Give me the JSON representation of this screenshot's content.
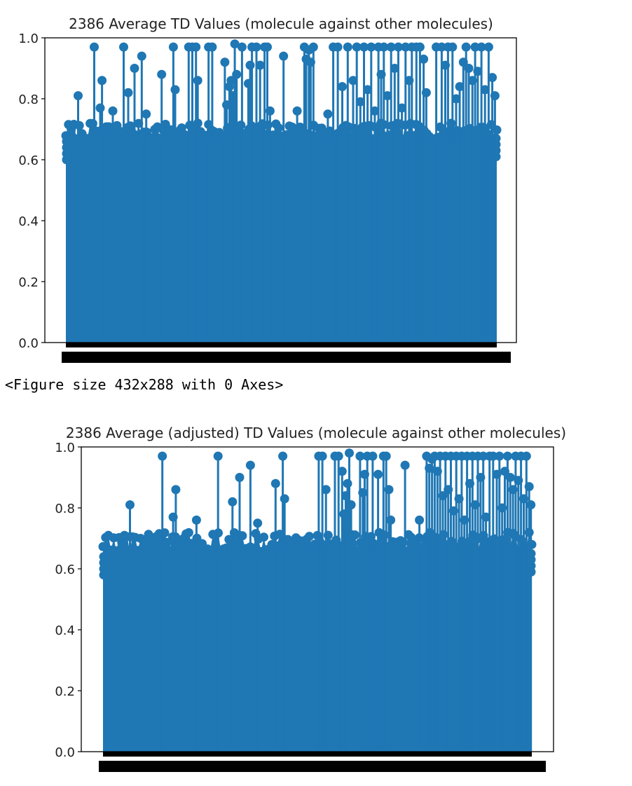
{
  "output_text": "<Figure size 432x288 with 0 Axes>",
  "colors": {
    "series": "#1f77b4",
    "axis": "#000000",
    "ticklabels": "#000000"
  },
  "chart_data": [
    {
      "type": "stem",
      "title": "2386 Average TD Values (molecule against other molecules)",
      "xlabel": "",
      "ylabel": "",
      "ylim": [
        0,
        1.0
      ],
      "yticks": [
        0.0,
        0.2,
        0.4,
        0.6,
        0.8,
        1.0
      ],
      "ytick_labels": [
        "0.0",
        "0.2",
        "0.4",
        "0.6",
        "0.8",
        "1.0"
      ],
      "x_count": 2386,
      "grid": false,
      "legend": "none",
      "baseline_range": [
        0.6,
        0.72
      ],
      "outliers": [
        {
          "x": 68,
          "y": 0.81
        },
        {
          "x": 157,
          "y": 0.97
        },
        {
          "x": 190,
          "y": 0.77
        },
        {
          "x": 200,
          "y": 0.86
        },
        {
          "x": 260,
          "y": 0.76
        },
        {
          "x": 320,
          "y": 0.97
        },
        {
          "x": 345,
          "y": 0.82
        },
        {
          "x": 380,
          "y": 0.9
        },
        {
          "x": 420,
          "y": 0.94
        },
        {
          "x": 445,
          "y": 0.75
        },
        {
          "x": 530,
          "y": 0.88
        },
        {
          "x": 595,
          "y": 0.97
        },
        {
          "x": 605,
          "y": 0.83
        },
        {
          "x": 680,
          "y": 0.97
        },
        {
          "x": 700,
          "y": 0.97
        },
        {
          "x": 720,
          "y": 0.97
        },
        {
          "x": 730,
          "y": 0.86
        },
        {
          "x": 790,
          "y": 0.97
        },
        {
          "x": 810,
          "y": 0.97
        },
        {
          "x": 880,
          "y": 0.92
        },
        {
          "x": 890,
          "y": 0.78
        },
        {
          "x": 905,
          "y": 0.84
        },
        {
          "x": 915,
          "y": 0.86
        },
        {
          "x": 925,
          "y": 0.81
        },
        {
          "x": 935,
          "y": 0.98
        },
        {
          "x": 945,
          "y": 0.88
        },
        {
          "x": 975,
          "y": 0.97
        },
        {
          "x": 1010,
          "y": 0.85
        },
        {
          "x": 1020,
          "y": 0.91
        },
        {
          "x": 1030,
          "y": 0.97
        },
        {
          "x": 1055,
          "y": 0.97
        },
        {
          "x": 1075,
          "y": 0.91
        },
        {
          "x": 1100,
          "y": 0.97
        },
        {
          "x": 1115,
          "y": 0.97
        },
        {
          "x": 1130,
          "y": 0.76
        },
        {
          "x": 1205,
          "y": 0.94
        },
        {
          "x": 1280,
          "y": 0.76
        },
        {
          "x": 1320,
          "y": 0.97
        },
        {
          "x": 1330,
          "y": 0.93
        },
        {
          "x": 1345,
          "y": 0.96
        },
        {
          "x": 1355,
          "y": 0.92
        },
        {
          "x": 1370,
          "y": 0.97
        },
        {
          "x": 1450,
          "y": 0.75
        },
        {
          "x": 1480,
          "y": 0.97
        },
        {
          "x": 1505,
          "y": 0.97
        },
        {
          "x": 1530,
          "y": 0.84
        },
        {
          "x": 1560,
          "y": 0.97
        },
        {
          "x": 1590,
          "y": 0.86
        },
        {
          "x": 1610,
          "y": 0.97
        },
        {
          "x": 1630,
          "y": 0.79
        },
        {
          "x": 1650,
          "y": 0.97
        },
        {
          "x": 1670,
          "y": 0.83
        },
        {
          "x": 1690,
          "y": 0.97
        },
        {
          "x": 1710,
          "y": 0.76
        },
        {
          "x": 1730,
          "y": 0.97
        },
        {
          "x": 1745,
          "y": 0.88
        },
        {
          "x": 1760,
          "y": 0.97
        },
        {
          "x": 1780,
          "y": 0.81
        },
        {
          "x": 1800,
          "y": 0.97
        },
        {
          "x": 1820,
          "y": 0.9
        },
        {
          "x": 1840,
          "y": 0.97
        },
        {
          "x": 1860,
          "y": 0.77
        },
        {
          "x": 1880,
          "y": 0.97
        },
        {
          "x": 1900,
          "y": 0.86
        },
        {
          "x": 1915,
          "y": 0.97
        },
        {
          "x": 1940,
          "y": 0.97
        },
        {
          "x": 1960,
          "y": 0.97
        },
        {
          "x": 1980,
          "y": 0.93
        },
        {
          "x": 1995,
          "y": 0.82
        },
        {
          "x": 2050,
          "y": 0.97
        },
        {
          "x": 2080,
          "y": 0.97
        },
        {
          "x": 2100,
          "y": 0.91
        },
        {
          "x": 2115,
          "y": 0.97
        },
        {
          "x": 2140,
          "y": 0.97
        },
        {
          "x": 2160,
          "y": 0.8
        },
        {
          "x": 2180,
          "y": 0.84
        },
        {
          "x": 2200,
          "y": 0.92
        },
        {
          "x": 2215,
          "y": 0.97
        },
        {
          "x": 2230,
          "y": 0.9
        },
        {
          "x": 2250,
          "y": 0.86
        },
        {
          "x": 2265,
          "y": 0.97
        },
        {
          "x": 2280,
          "y": 0.89
        },
        {
          "x": 2300,
          "y": 0.97
        },
        {
          "x": 2320,
          "y": 0.83
        },
        {
          "x": 2340,
          "y": 0.97
        },
        {
          "x": 2360,
          "y": 0.87
        },
        {
          "x": 2375,
          "y": 0.81
        }
      ]
    },
    {
      "type": "stem",
      "title": "2386 Average (adjusted) TD Values (molecule against other molecules)",
      "xlabel": "",
      "ylabel": "",
      "ylim": [
        0,
        1.0
      ],
      "yticks": [
        0.0,
        0.2,
        0.4,
        0.6,
        0.8,
        1.0
      ],
      "ytick_labels": [
        "0.0",
        "0.2",
        "0.4",
        "0.6",
        "0.8",
        "1.0"
      ],
      "x_count": 2386,
      "grid": false,
      "legend": "none",
      "baseline_range": [
        0.58,
        0.72
      ],
      "outliers": [
        {
          "x": 150,
          "y": 0.81
        },
        {
          "x": 330,
          "y": 0.97
        },
        {
          "x": 390,
          "y": 0.77
        },
        {
          "x": 405,
          "y": 0.86
        },
        {
          "x": 520,
          "y": 0.76
        },
        {
          "x": 640,
          "y": 0.97
        },
        {
          "x": 720,
          "y": 0.82
        },
        {
          "x": 760,
          "y": 0.9
        },
        {
          "x": 820,
          "y": 0.94
        },
        {
          "x": 860,
          "y": 0.75
        },
        {
          "x": 960,
          "y": 0.88
        },
        {
          "x": 1000,
          "y": 0.97
        },
        {
          "x": 1010,
          "y": 0.83
        },
        {
          "x": 1200,
          "y": 0.97
        },
        {
          "x": 1220,
          "y": 0.97
        },
        {
          "x": 1240,
          "y": 0.86
        },
        {
          "x": 1290,
          "y": 0.97
        },
        {
          "x": 1310,
          "y": 0.97
        },
        {
          "x": 1330,
          "y": 0.92
        },
        {
          "x": 1340,
          "y": 0.78
        },
        {
          "x": 1350,
          "y": 0.84
        },
        {
          "x": 1360,
          "y": 0.88
        },
        {
          "x": 1370,
          "y": 0.98
        },
        {
          "x": 1380,
          "y": 0.81
        },
        {
          "x": 1430,
          "y": 0.97
        },
        {
          "x": 1445,
          "y": 0.85
        },
        {
          "x": 1455,
          "y": 0.91
        },
        {
          "x": 1470,
          "y": 0.97
        },
        {
          "x": 1500,
          "y": 0.97
        },
        {
          "x": 1530,
          "y": 0.91
        },
        {
          "x": 1560,
          "y": 0.97
        },
        {
          "x": 1575,
          "y": 0.97
        },
        {
          "x": 1590,
          "y": 0.86
        },
        {
          "x": 1600,
          "y": 0.76
        },
        {
          "x": 1680,
          "y": 0.94
        },
        {
          "x": 1760,
          "y": 0.76
        },
        {
          "x": 1800,
          "y": 0.97
        },
        {
          "x": 1815,
          "y": 0.93
        },
        {
          "x": 1830,
          "y": 0.96
        },
        {
          "x": 1845,
          "y": 0.97
        },
        {
          "x": 1860,
          "y": 0.92
        },
        {
          "x": 1875,
          "y": 0.97
        },
        {
          "x": 1890,
          "y": 0.84
        },
        {
          "x": 1905,
          "y": 0.97
        },
        {
          "x": 1920,
          "y": 0.86
        },
        {
          "x": 1935,
          "y": 0.97
        },
        {
          "x": 1950,
          "y": 0.79
        },
        {
          "x": 1965,
          "y": 0.97
        },
        {
          "x": 1980,
          "y": 0.83
        },
        {
          "x": 1995,
          "y": 0.97
        },
        {
          "x": 2010,
          "y": 0.76
        },
        {
          "x": 2025,
          "y": 0.97
        },
        {
          "x": 2040,
          "y": 0.88
        },
        {
          "x": 2055,
          "y": 0.97
        },
        {
          "x": 2070,
          "y": 0.81
        },
        {
          "x": 2085,
          "y": 0.97
        },
        {
          "x": 2100,
          "y": 0.9
        },
        {
          "x": 2115,
          "y": 0.97
        },
        {
          "x": 2130,
          "y": 0.77
        },
        {
          "x": 2150,
          "y": 0.97
        },
        {
          "x": 2170,
          "y": 0.97
        },
        {
          "x": 2190,
          "y": 0.91
        },
        {
          "x": 2205,
          "y": 0.97
        },
        {
          "x": 2220,
          "y": 0.8
        },
        {
          "x": 2235,
          "y": 0.92
        },
        {
          "x": 2250,
          "y": 0.97
        },
        {
          "x": 2265,
          "y": 0.9
        },
        {
          "x": 2280,
          "y": 0.86
        },
        {
          "x": 2295,
          "y": 0.97
        },
        {
          "x": 2310,
          "y": 0.89
        },
        {
          "x": 2325,
          "y": 0.97
        },
        {
          "x": 2340,
          "y": 0.83
        },
        {
          "x": 2355,
          "y": 0.97
        },
        {
          "x": 2370,
          "y": 0.87
        },
        {
          "x": 2380,
          "y": 0.81
        }
      ]
    }
  ]
}
